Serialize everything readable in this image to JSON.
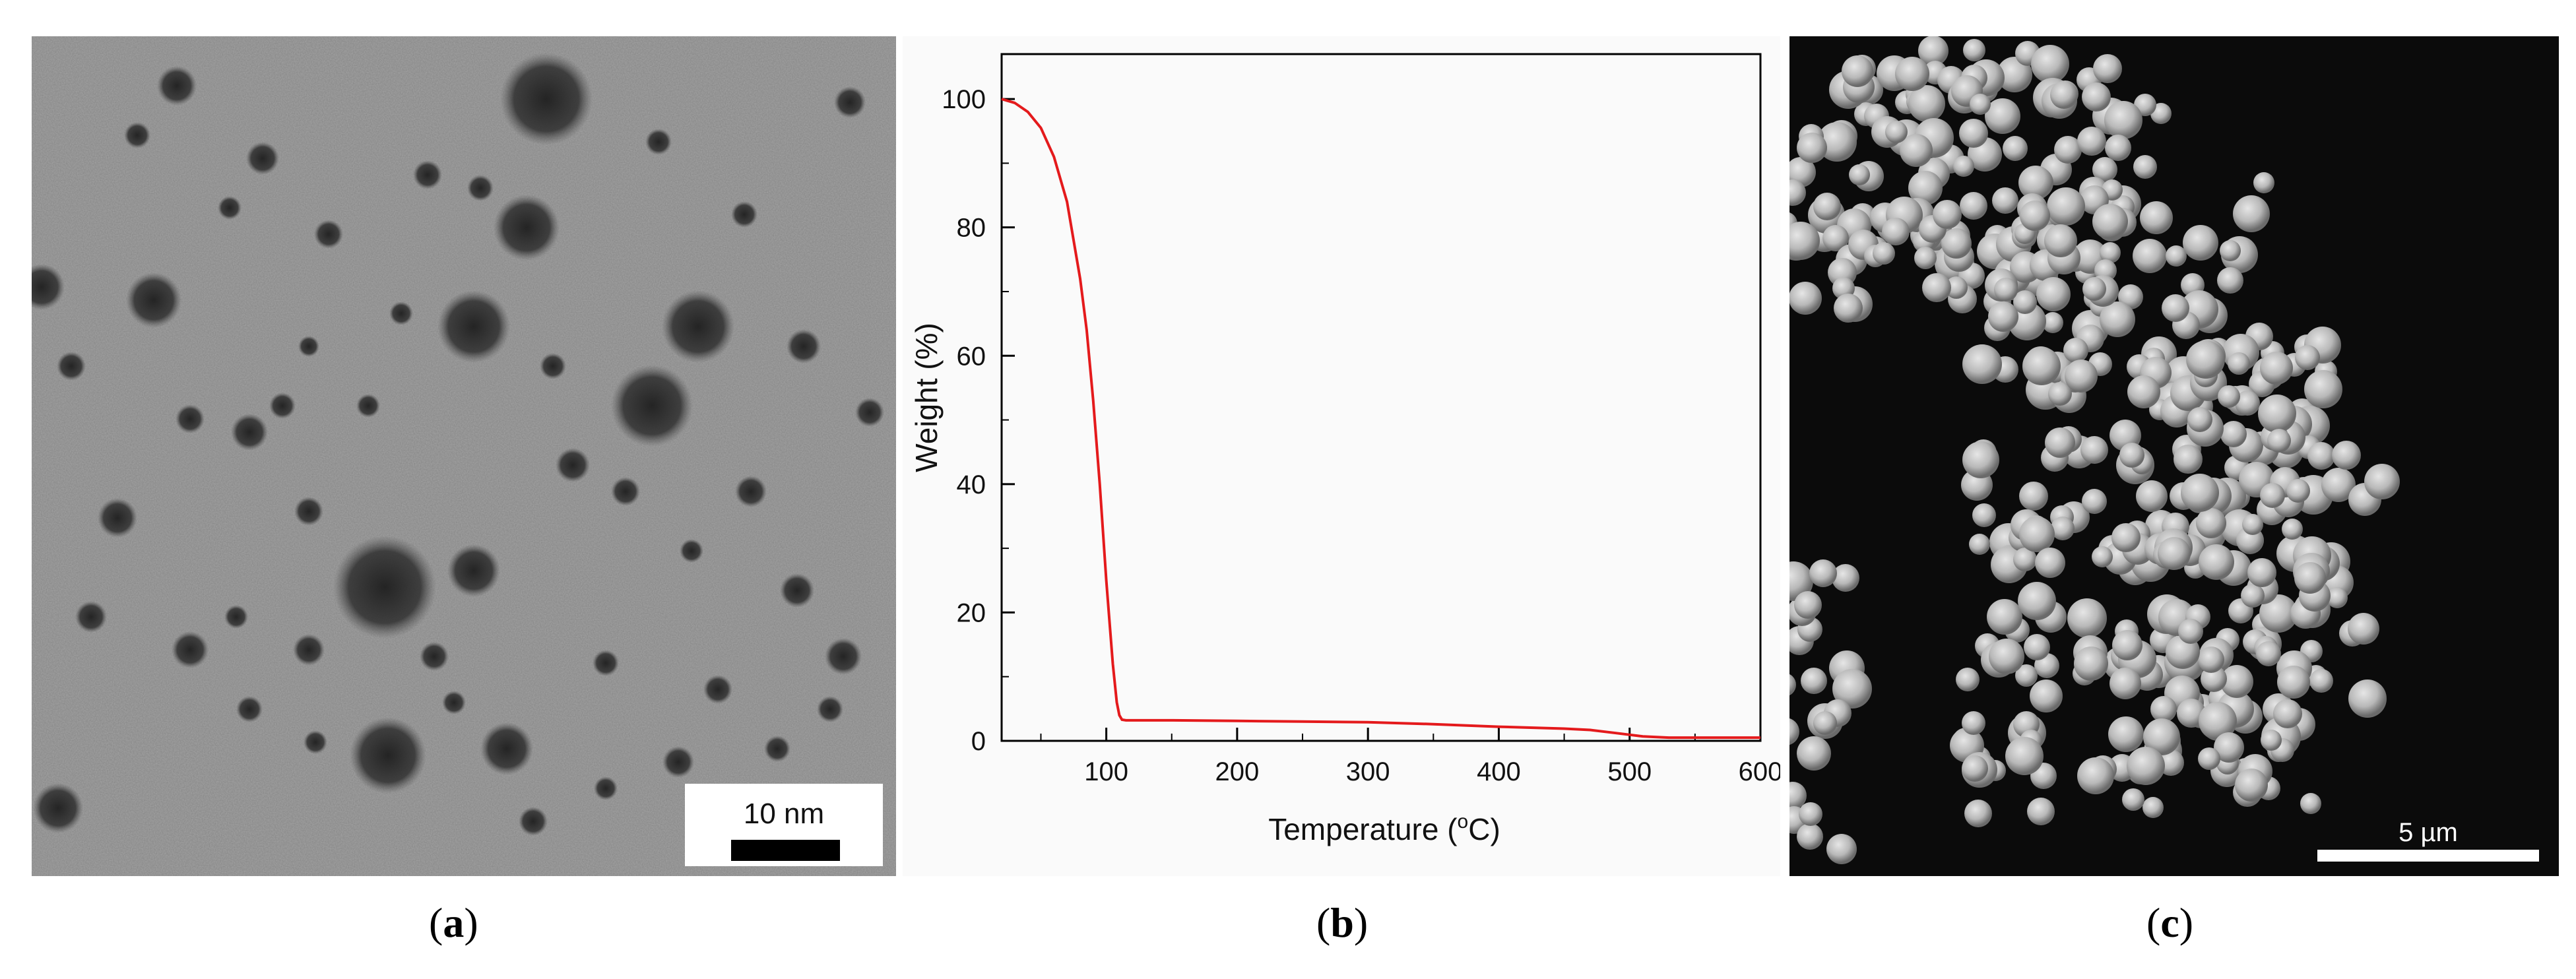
{
  "panels": {
    "a": {
      "label_open": "(",
      "label_letter": "a",
      "label_close": ")",
      "scale_bar_label": "10 nm"
    },
    "b": {
      "label_open": "(",
      "label_letter": "b",
      "label_close": ")"
    },
    "c": {
      "label_open": "(",
      "label_letter": "c",
      "label_close": ")",
      "scale_bar_label": "5 µm"
    }
  },
  "colors": {
    "curve": "#e41a1c",
    "tem_background": "#9a9a9a",
    "tem_particle": "#2b2b2b",
    "sem_background": "#0a0a0a",
    "sem_particle": "#bdbdbd"
  },
  "chart_data": {
    "type": "line",
    "xlabel": "Temperature (oC)",
    "ylabel": "Weight (%)",
    "xlim": [
      20,
      600
    ],
    "ylim": [
      0,
      107
    ],
    "xticks": [
      100,
      200,
      300,
      400,
      500,
      600
    ],
    "yticks": [
      0,
      20,
      40,
      60,
      80,
      100
    ],
    "grid": false,
    "series": [
      {
        "x": [
          20,
          30,
          40,
          50,
          60,
          70,
          80,
          85,
          90,
          95,
          100,
          105,
          108,
          110,
          112,
          115,
          130,
          150,
          200,
          250,
          300,
          350,
          400,
          450,
          470,
          490,
          510,
          530,
          560,
          600
        ],
        "y": [
          100,
          99.4,
          98,
          95.5,
          91,
          84,
          72,
          64,
          53,
          40,
          25,
          12,
          6,
          4,
          3.3,
          3.2,
          3.2,
          3.2,
          3.1,
          3.0,
          2.9,
          2.6,
          2.2,
          1.9,
          1.7,
          1.2,
          0.7,
          0.5,
          0.5,
          0.5
        ]
      }
    ]
  }
}
